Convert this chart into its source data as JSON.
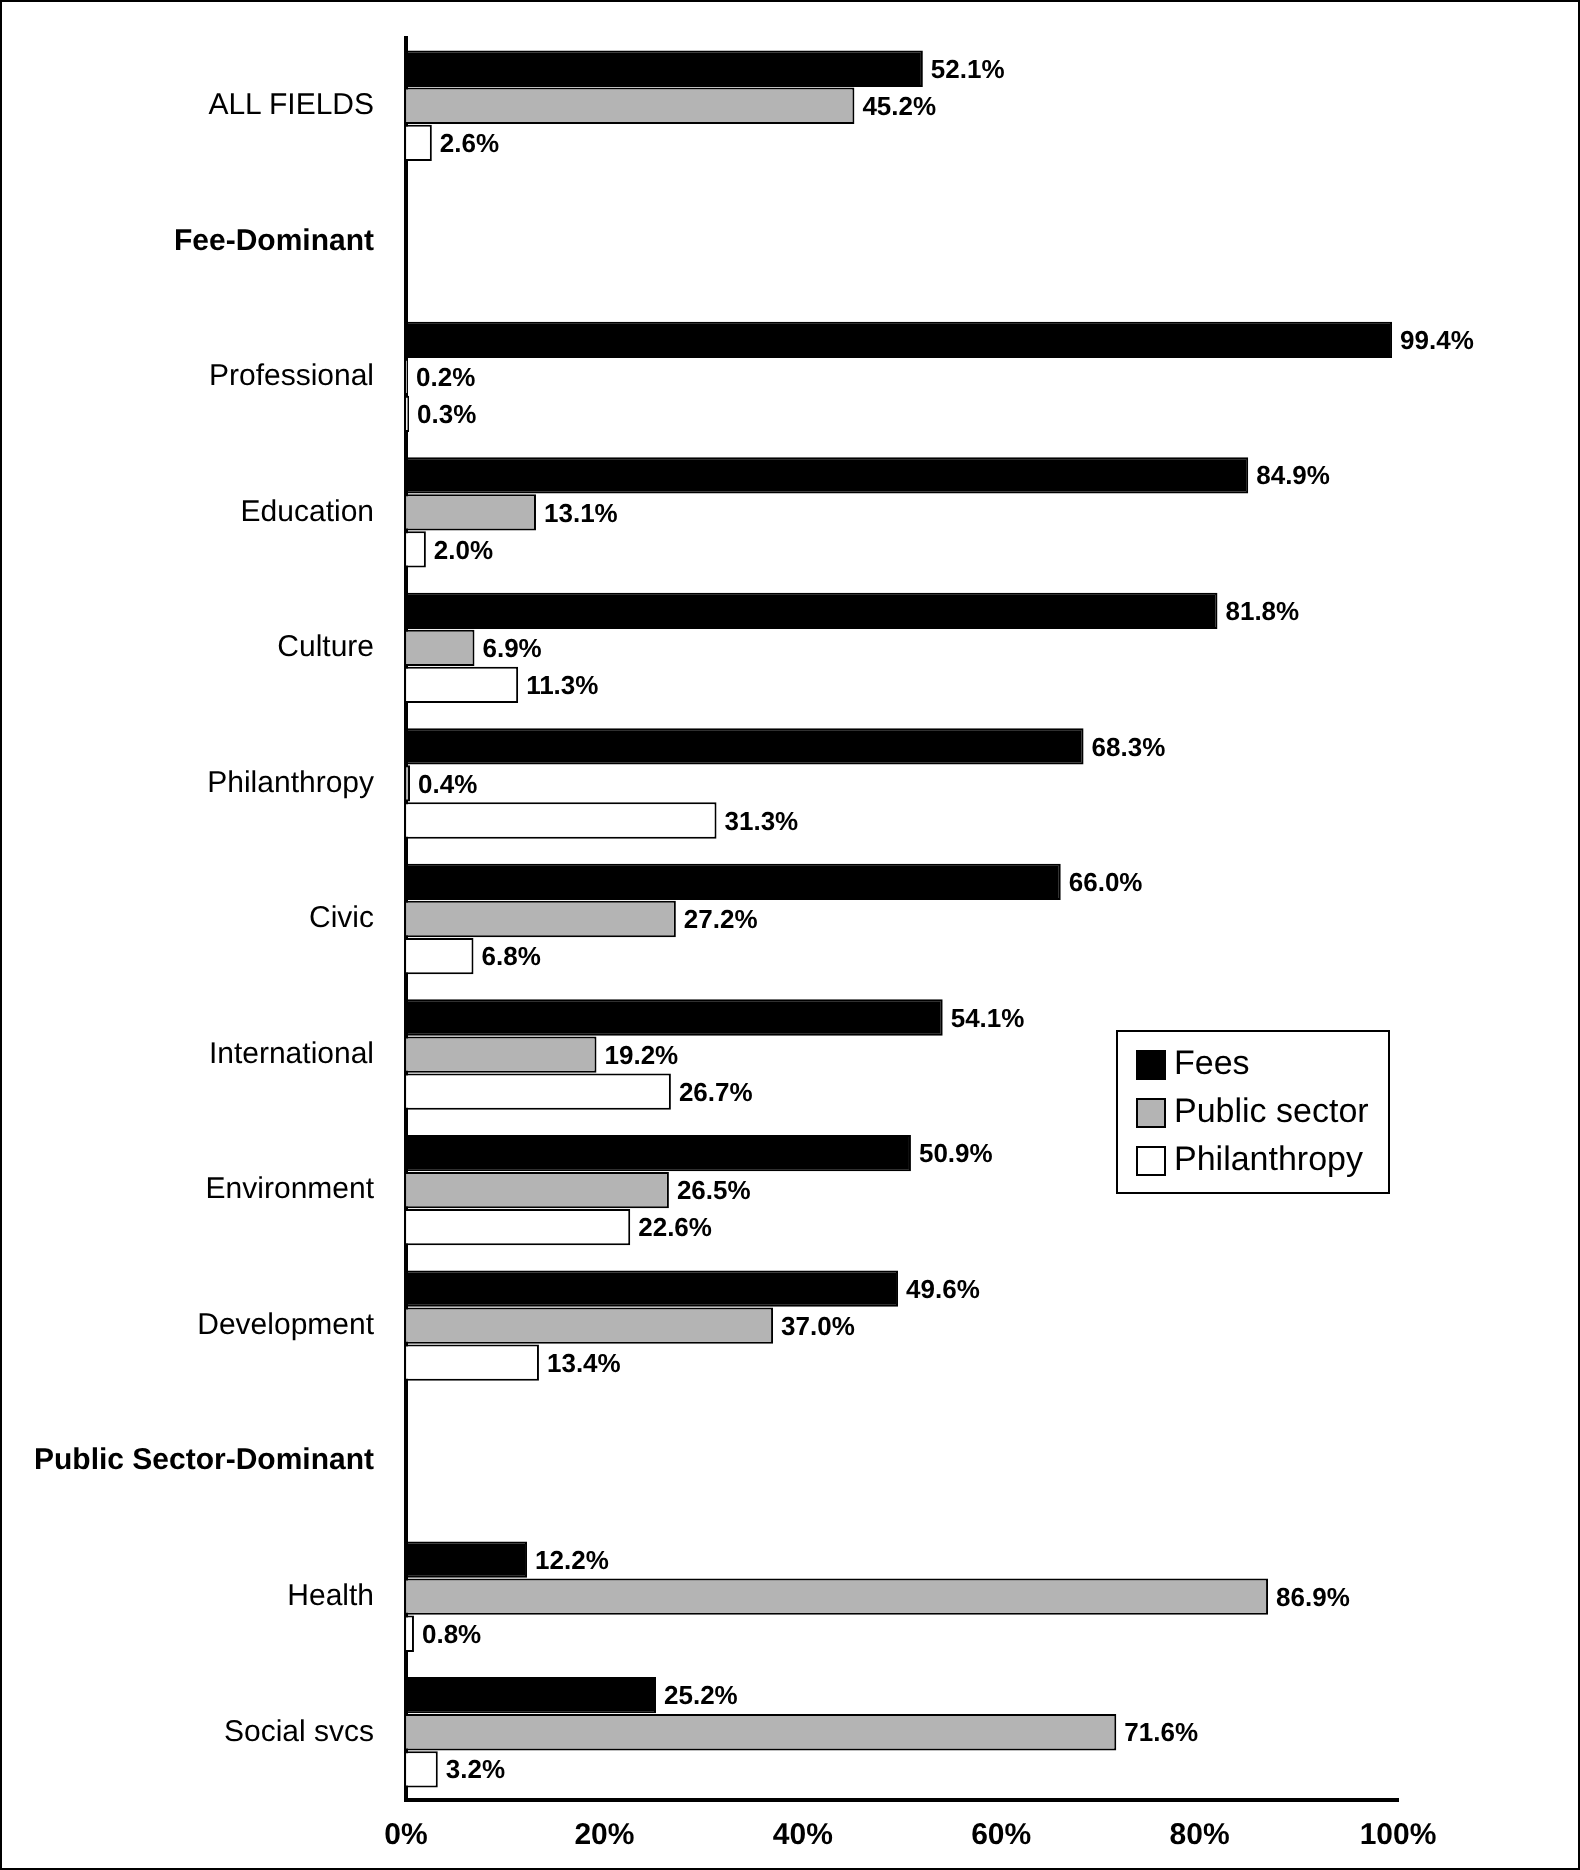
{
  "chart_data": {
    "type": "bar",
    "orientation": "horizontal",
    "categories": [
      "ALL FIELDS",
      "Fee-Dominant",
      "Professional",
      "Education",
      "Culture",
      "Philanthropy",
      "Civic",
      "International",
      "Environment",
      "Development",
      "Public Sector-Dominant",
      "Health",
      "Social svcs"
    ],
    "series": [
      {
        "name": "Fees",
        "color": "#000000",
        "values": [
          52.1,
          null,
          99.4,
          84.9,
          81.8,
          68.3,
          66.0,
          54.1,
          50.9,
          49.6,
          null,
          12.2,
          25.2
        ],
        "value_labels": [
          "52.1%",
          null,
          "99.4%",
          "84.9%",
          "81.8%",
          "68.3%",
          "66.0%",
          "54.1%",
          "50.9%",
          "49.6%",
          null,
          "12.2%",
          "25.2%"
        ]
      },
      {
        "name": "Public sector",
        "color": "#b4b4b4",
        "values": [
          45.2,
          null,
          0.2,
          13.1,
          6.9,
          0.4,
          27.2,
          19.2,
          26.5,
          37.0,
          null,
          86.9,
          71.6
        ],
        "value_labels": [
          "45.2%",
          null,
          "0.2%",
          "13.1%",
          "6.9%",
          "0.4%",
          "27.2%",
          "19.2%",
          "26.5%",
          "37.0%",
          null,
          "86.9%",
          "71.6%"
        ]
      },
      {
        "name": "Philanthropy",
        "color": "#ffffff",
        "values": [
          2.6,
          null,
          0.3,
          2.0,
          11.3,
          31.3,
          6.8,
          26.7,
          22.6,
          13.4,
          null,
          0.8,
          3.2
        ],
        "value_labels": [
          "2.6%",
          null,
          "0.3%",
          "2.0%",
          "11.3%",
          "31.3%",
          "6.8%",
          "26.7%",
          "22.6%",
          "13.4%",
          null,
          "0.8%",
          "3.2%"
        ]
      }
    ],
    "xlim": [
      0,
      100
    ],
    "xticks": [
      {
        "value": 0,
        "label": "0%"
      },
      {
        "value": 20,
        "label": "20%"
      },
      {
        "value": 40,
        "label": "40%"
      },
      {
        "value": 60,
        "label": "60%"
      },
      {
        "value": 80,
        "label": "80%"
      },
      {
        "value": 100,
        "label": "100%"
      }
    ],
    "grid": false,
    "legend": "right"
  }
}
